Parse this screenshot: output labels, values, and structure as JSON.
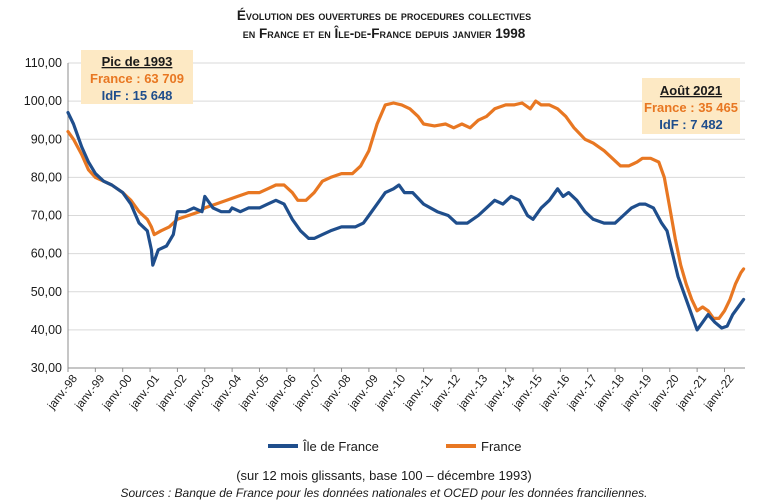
{
  "chart_data": {
    "type": "line",
    "title_line1": "Évolution des ouvertures de procedures collectives",
    "title_line2": "en France et en Île-de-France depuis janvier 1998",
    "ylim": [
      30,
      110
    ],
    "y_ticks": [
      "30,00",
      "40,00",
      "50,00",
      "60,00",
      "70,00",
      "80,00",
      "90,00",
      "100,00",
      "110,00"
    ],
    "x_ticks": [
      "janv.-98",
      "janv.-99",
      "janv.-00",
      "janv.-01",
      "janv.-02",
      "janv.-03",
      "janv.-04",
      "janv.-05",
      "janv.-06",
      "janv.-07",
      "janv.-08",
      "janv.-09",
      "janv.-10",
      "janv.-11",
      "janv.-12",
      "janv.-13",
      "janv.-14",
      "janv.-15",
      "janv.-16",
      "janv.-17",
      "janv.-18",
      "janv.-19",
      "janv.-20",
      "janv.-21",
      "janv.-22"
    ],
    "x_range": [
      1998.0,
      2022.75
    ],
    "grid": true,
    "legend_position": "bottom",
    "series": [
      {
        "name": "Île de France",
        "color": "#1f4e8c",
        "points": [
          [
            1998.0,
            97
          ],
          [
            1998.2,
            94
          ],
          [
            1998.5,
            88
          ],
          [
            1998.75,
            84
          ],
          [
            1999.0,
            81
          ],
          [
            1999.3,
            79
          ],
          [
            1999.6,
            78
          ],
          [
            2000.0,
            76
          ],
          [
            2000.3,
            73
          ],
          [
            2000.6,
            68
          ],
          [
            2000.9,
            66
          ],
          [
            2001.05,
            61
          ],
          [
            2001.1,
            57
          ],
          [
            2001.3,
            61
          ],
          [
            2001.6,
            62
          ],
          [
            2001.85,
            65
          ],
          [
            2002.0,
            71
          ],
          [
            2002.3,
            71
          ],
          [
            2002.6,
            72
          ],
          [
            2002.9,
            71
          ],
          [
            2003.0,
            75
          ],
          [
            2003.3,
            72
          ],
          [
            2003.6,
            71
          ],
          [
            2003.9,
            71
          ],
          [
            2004.0,
            72
          ],
          [
            2004.3,
            71
          ],
          [
            2004.6,
            72
          ],
          [
            2005.0,
            72
          ],
          [
            2005.3,
            73
          ],
          [
            2005.6,
            74
          ],
          [
            2005.9,
            73
          ],
          [
            2006.2,
            69
          ],
          [
            2006.5,
            66
          ],
          [
            2006.8,
            64
          ],
          [
            2007.0,
            64
          ],
          [
            2007.3,
            65
          ],
          [
            2007.6,
            66
          ],
          [
            2008.0,
            67
          ],
          [
            2008.5,
            67
          ],
          [
            2008.8,
            68
          ],
          [
            2009.0,
            70
          ],
          [
            2009.3,
            73
          ],
          [
            2009.6,
            76
          ],
          [
            2009.9,
            77
          ],
          [
            2010.1,
            78
          ],
          [
            2010.3,
            76
          ],
          [
            2010.6,
            76
          ],
          [
            2011.0,
            73
          ],
          [
            2011.5,
            71
          ],
          [
            2011.9,
            70
          ],
          [
            2012.2,
            68
          ],
          [
            2012.6,
            68
          ],
          [
            2013.0,
            70
          ],
          [
            2013.3,
            72
          ],
          [
            2013.6,
            74
          ],
          [
            2013.9,
            73
          ],
          [
            2014.2,
            75
          ],
          [
            2014.5,
            74
          ],
          [
            2014.8,
            70
          ],
          [
            2015.0,
            69
          ],
          [
            2015.3,
            72
          ],
          [
            2015.6,
            74
          ],
          [
            2015.9,
            77
          ],
          [
            2016.1,
            75
          ],
          [
            2016.3,
            76
          ],
          [
            2016.6,
            74
          ],
          [
            2016.9,
            71
          ],
          [
            2017.2,
            69
          ],
          [
            2017.6,
            68
          ],
          [
            2018.0,
            68
          ],
          [
            2018.3,
            70
          ],
          [
            2018.6,
            72
          ],
          [
            2018.9,
            73
          ],
          [
            2019.1,
            73
          ],
          [
            2019.4,
            72
          ],
          [
            2019.7,
            68
          ],
          [
            2019.9,
            66
          ],
          [
            2020.1,
            60
          ],
          [
            2020.3,
            54
          ],
          [
            2020.6,
            48
          ],
          [
            2020.85,
            43
          ],
          [
            2021.0,
            40
          ],
          [
            2021.2,
            42
          ],
          [
            2021.4,
            44
          ],
          [
            2021.65,
            42
          ],
          [
            2021.9,
            40.5
          ],
          [
            2022.1,
            41
          ],
          [
            2022.3,
            44
          ],
          [
            2022.5,
            46
          ],
          [
            2022.7,
            48
          ]
        ]
      },
      {
        "name": "France",
        "color": "#e87722",
        "points": [
          [
            1998.0,
            92
          ],
          [
            1998.2,
            90
          ],
          [
            1998.5,
            86
          ],
          [
            1998.75,
            82
          ],
          [
            1999.0,
            80
          ],
          [
            1999.3,
            79
          ],
          [
            1999.6,
            78
          ],
          [
            2000.0,
            76
          ],
          [
            2000.3,
            74
          ],
          [
            2000.6,
            71
          ],
          [
            2000.9,
            69
          ],
          [
            2001.05,
            67
          ],
          [
            2001.15,
            65
          ],
          [
            2001.4,
            66
          ],
          [
            2001.7,
            67
          ],
          [
            2002.0,
            69
          ],
          [
            2002.4,
            70
          ],
          [
            2002.8,
            71
          ],
          [
            2003.0,
            72
          ],
          [
            2003.4,
            73
          ],
          [
            2003.8,
            74
          ],
          [
            2004.2,
            75
          ],
          [
            2004.6,
            76
          ],
          [
            2005.0,
            76
          ],
          [
            2005.3,
            77
          ],
          [
            2005.6,
            78
          ],
          [
            2005.9,
            78
          ],
          [
            2006.2,
            76
          ],
          [
            2006.4,
            74
          ],
          [
            2006.7,
            74
          ],
          [
            2007.0,
            76
          ],
          [
            2007.3,
            79
          ],
          [
            2007.6,
            80
          ],
          [
            2008.0,
            81
          ],
          [
            2008.4,
            81
          ],
          [
            2008.7,
            83
          ],
          [
            2009.0,
            87
          ],
          [
            2009.3,
            94
          ],
          [
            2009.6,
            99
          ],
          [
            2009.9,
            99.5
          ],
          [
            2010.2,
            99
          ],
          [
            2010.5,
            98
          ],
          [
            2010.8,
            96
          ],
          [
            2011.0,
            94
          ],
          [
            2011.4,
            93.5
          ],
          [
            2011.8,
            94
          ],
          [
            2012.1,
            93
          ],
          [
            2012.4,
            94
          ],
          [
            2012.7,
            93
          ],
          [
            2013.0,
            95
          ],
          [
            2013.3,
            96
          ],
          [
            2013.6,
            98
          ],
          [
            2014.0,
            99
          ],
          [
            2014.3,
            99
          ],
          [
            2014.6,
            99.5
          ],
          [
            2014.9,
            98
          ],
          [
            2015.1,
            100
          ],
          [
            2015.3,
            99
          ],
          [
            2015.6,
            99
          ],
          [
            2015.9,
            98
          ],
          [
            2016.2,
            96
          ],
          [
            2016.5,
            93
          ],
          [
            2016.9,
            90
          ],
          [
            2017.2,
            89
          ],
          [
            2017.6,
            87
          ],
          [
            2017.9,
            85
          ],
          [
            2018.2,
            83
          ],
          [
            2018.5,
            83
          ],
          [
            2018.8,
            84
          ],
          [
            2019.0,
            85
          ],
          [
            2019.3,
            85
          ],
          [
            2019.6,
            84
          ],
          [
            2019.8,
            80
          ],
          [
            2020.0,
            72
          ],
          [
            2020.2,
            64
          ],
          [
            2020.4,
            57
          ],
          [
            2020.6,
            52
          ],
          [
            2020.8,
            48
          ],
          [
            2021.0,
            45
          ],
          [
            2021.2,
            46
          ],
          [
            2021.4,
            45
          ],
          [
            2021.6,
            43
          ],
          [
            2021.8,
            43
          ],
          [
            2022.0,
            45
          ],
          [
            2022.2,
            48
          ],
          [
            2022.4,
            52
          ],
          [
            2022.6,
            55
          ],
          [
            2022.7,
            56
          ]
        ]
      }
    ],
    "annotations": [
      {
        "title": "Pic de 1993",
        "france": "France : 63 709",
        "idf": "IdF : 15 648",
        "position": "top-left"
      },
      {
        "title": "Août 2021",
        "france": "France : 35 465",
        "idf": "IdF : 7 482",
        "position": "top-right"
      }
    ]
  },
  "footer": {
    "note": "(sur 12 mois glissants, base 100 – décembre 1993)",
    "source": "Sources : Banque de France pour les données nationales et OCED pour les données franciliennes."
  }
}
